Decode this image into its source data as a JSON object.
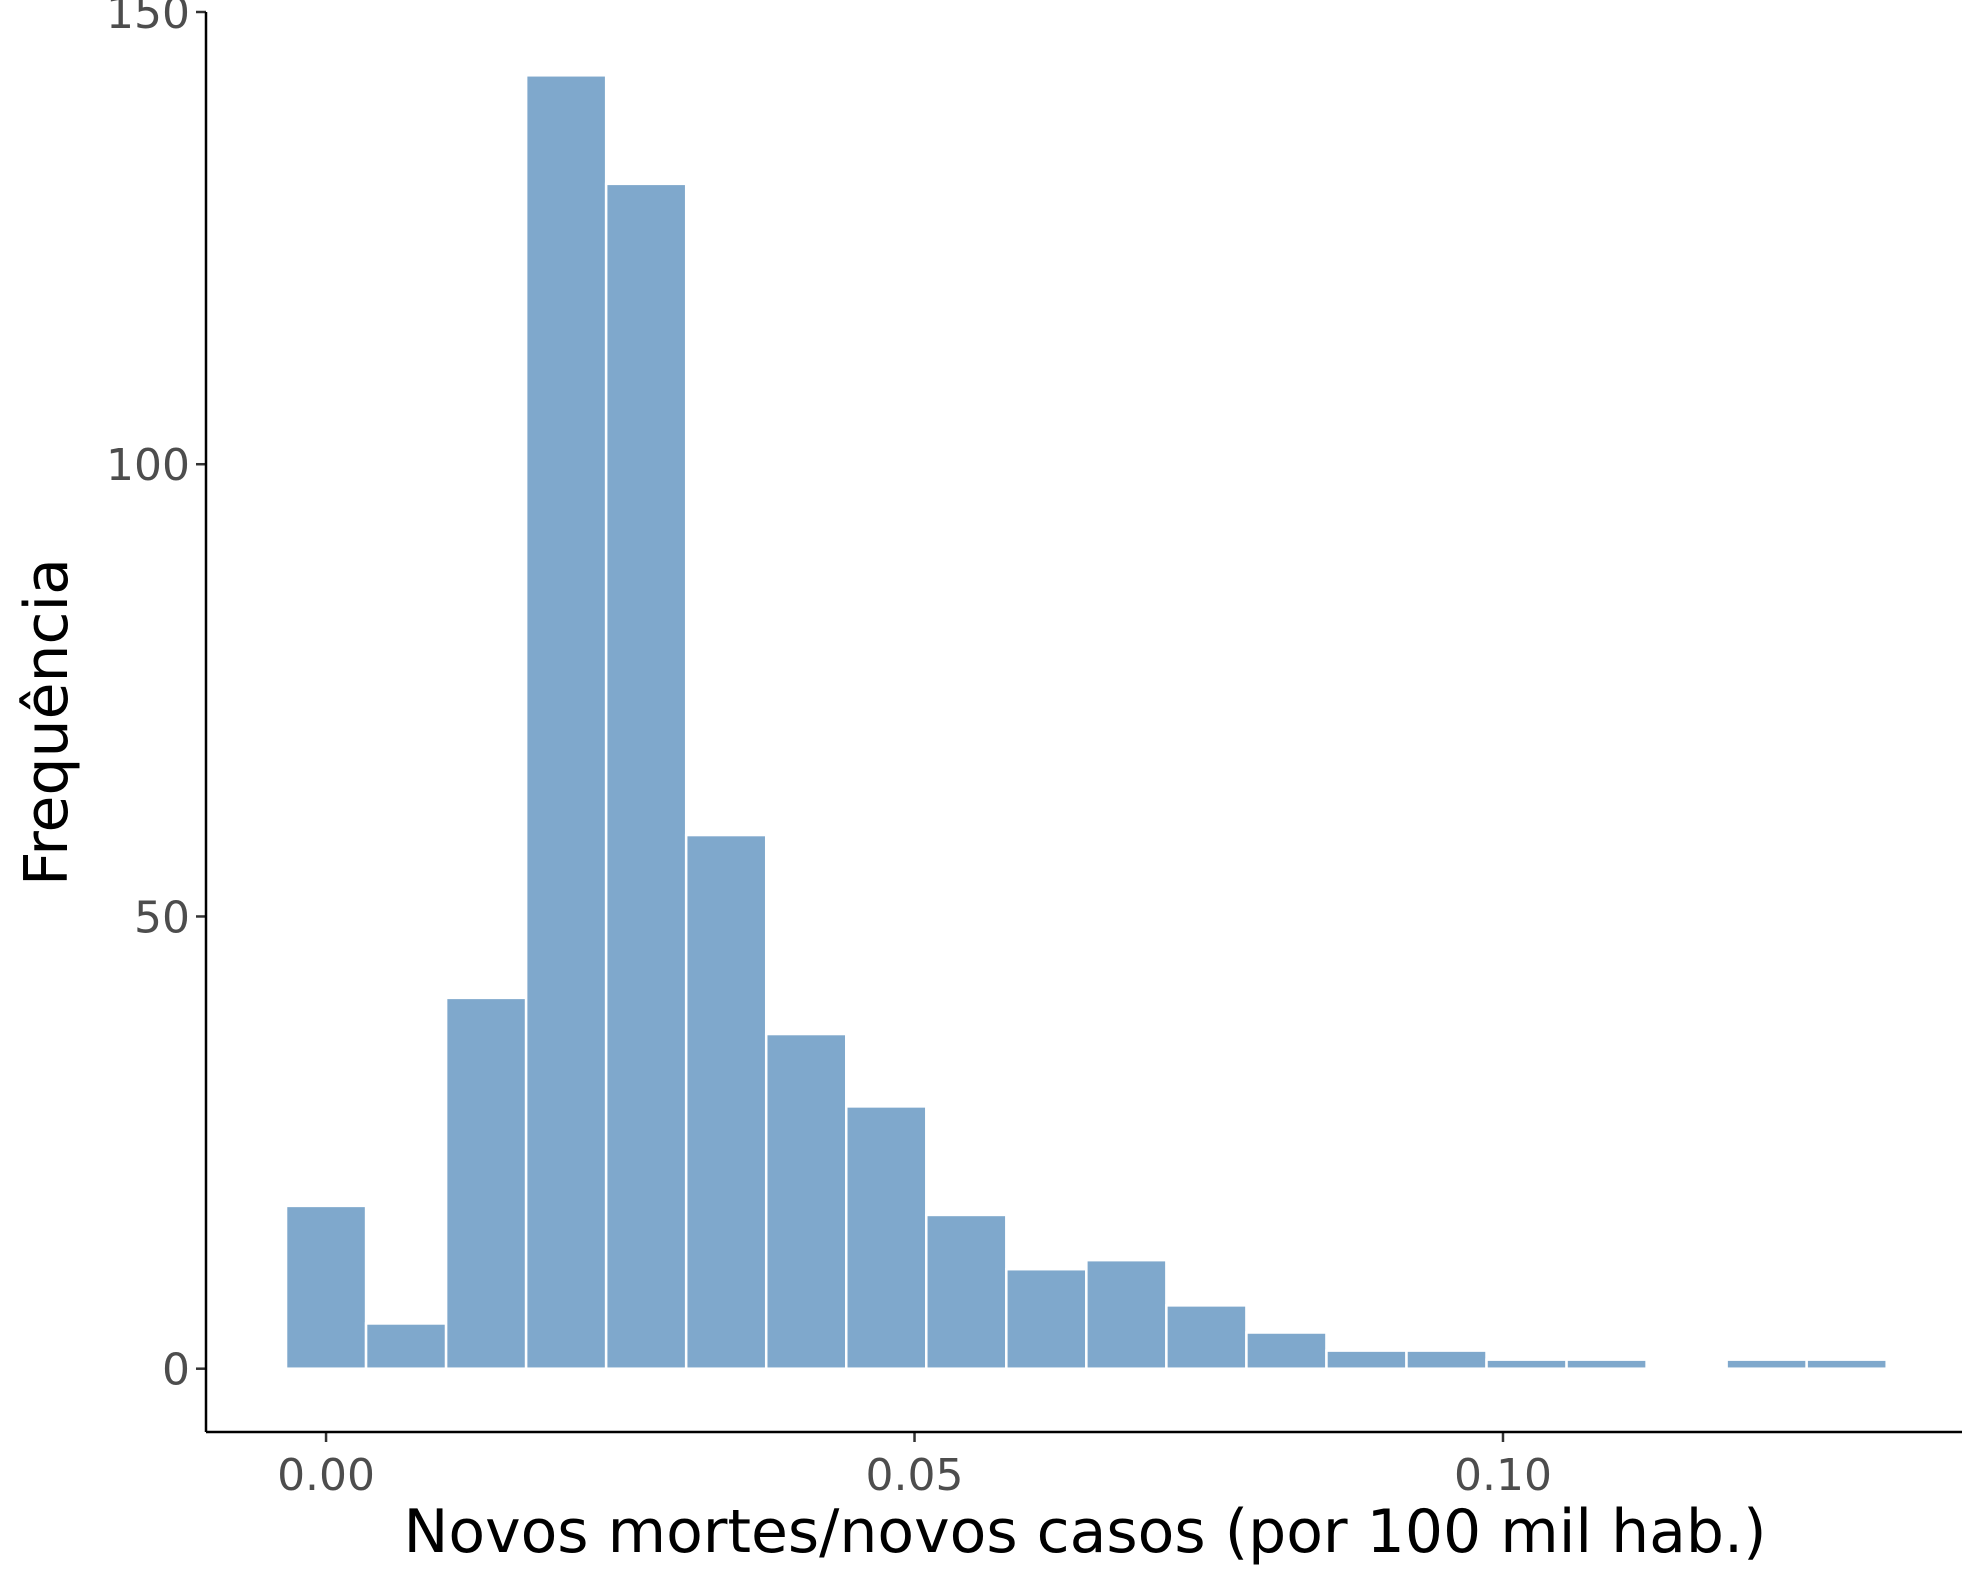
{
  "chart_data": {
    "type": "bar",
    "subtype": "histogram",
    "xlabel": "Novos mortes/novos casos (por 100 mil hab.)",
    "ylabel": "Frequência",
    "x_ticks": [
      {
        "value": 0.0,
        "label": "0.00"
      },
      {
        "value": 0.05,
        "label": "0.05"
      },
      {
        "value": 0.1,
        "label": "0.10"
      }
    ],
    "y_ticks": [
      {
        "value": 0,
        "label": "0"
      },
      {
        "value": 50,
        "label": "50"
      },
      {
        "value": 100,
        "label": "100"
      },
      {
        "value": 150,
        "label": "150"
      }
    ],
    "xlim": [
      -0.0102,
      0.139
    ],
    "ylim": [
      -7,
      150
    ],
    "bin_width": 0.0068,
    "bins": [
      {
        "start": -0.0034,
        "end": 0.0034,
        "count": 18
      },
      {
        "start": 0.0034,
        "end": 0.0102,
        "count": 5
      },
      {
        "start": 0.0102,
        "end": 0.017,
        "count": 41
      },
      {
        "start": 0.017,
        "end": 0.0238,
        "count": 143
      },
      {
        "start": 0.0238,
        "end": 0.0306,
        "count": 131
      },
      {
        "start": 0.0306,
        "end": 0.0374,
        "count": 59
      },
      {
        "start": 0.0374,
        "end": 0.0442,
        "count": 37
      },
      {
        "start": 0.0442,
        "end": 0.051,
        "count": 29
      },
      {
        "start": 0.051,
        "end": 0.0578,
        "count": 17
      },
      {
        "start": 0.0578,
        "end": 0.0646,
        "count": 11
      },
      {
        "start": 0.0646,
        "end": 0.0714,
        "count": 12
      },
      {
        "start": 0.0714,
        "end": 0.0782,
        "count": 7
      },
      {
        "start": 0.0782,
        "end": 0.085,
        "count": 4
      },
      {
        "start": 0.085,
        "end": 0.0918,
        "count": 2
      },
      {
        "start": 0.0918,
        "end": 0.0986,
        "count": 2
      },
      {
        "start": 0.0986,
        "end": 0.1054,
        "count": 1
      },
      {
        "start": 0.1054,
        "end": 0.1122,
        "count": 1
      },
      {
        "start": 0.1122,
        "end": 0.119,
        "count": 0
      },
      {
        "start": 0.119,
        "end": 0.1258,
        "count": 1
      },
      {
        "start": 0.1258,
        "end": 0.1326,
        "count": 1
      }
    ],
    "bar_color": "#7FA8CC",
    "bar_outline": "#FFFFFF",
    "grid": false,
    "legend": false
  }
}
